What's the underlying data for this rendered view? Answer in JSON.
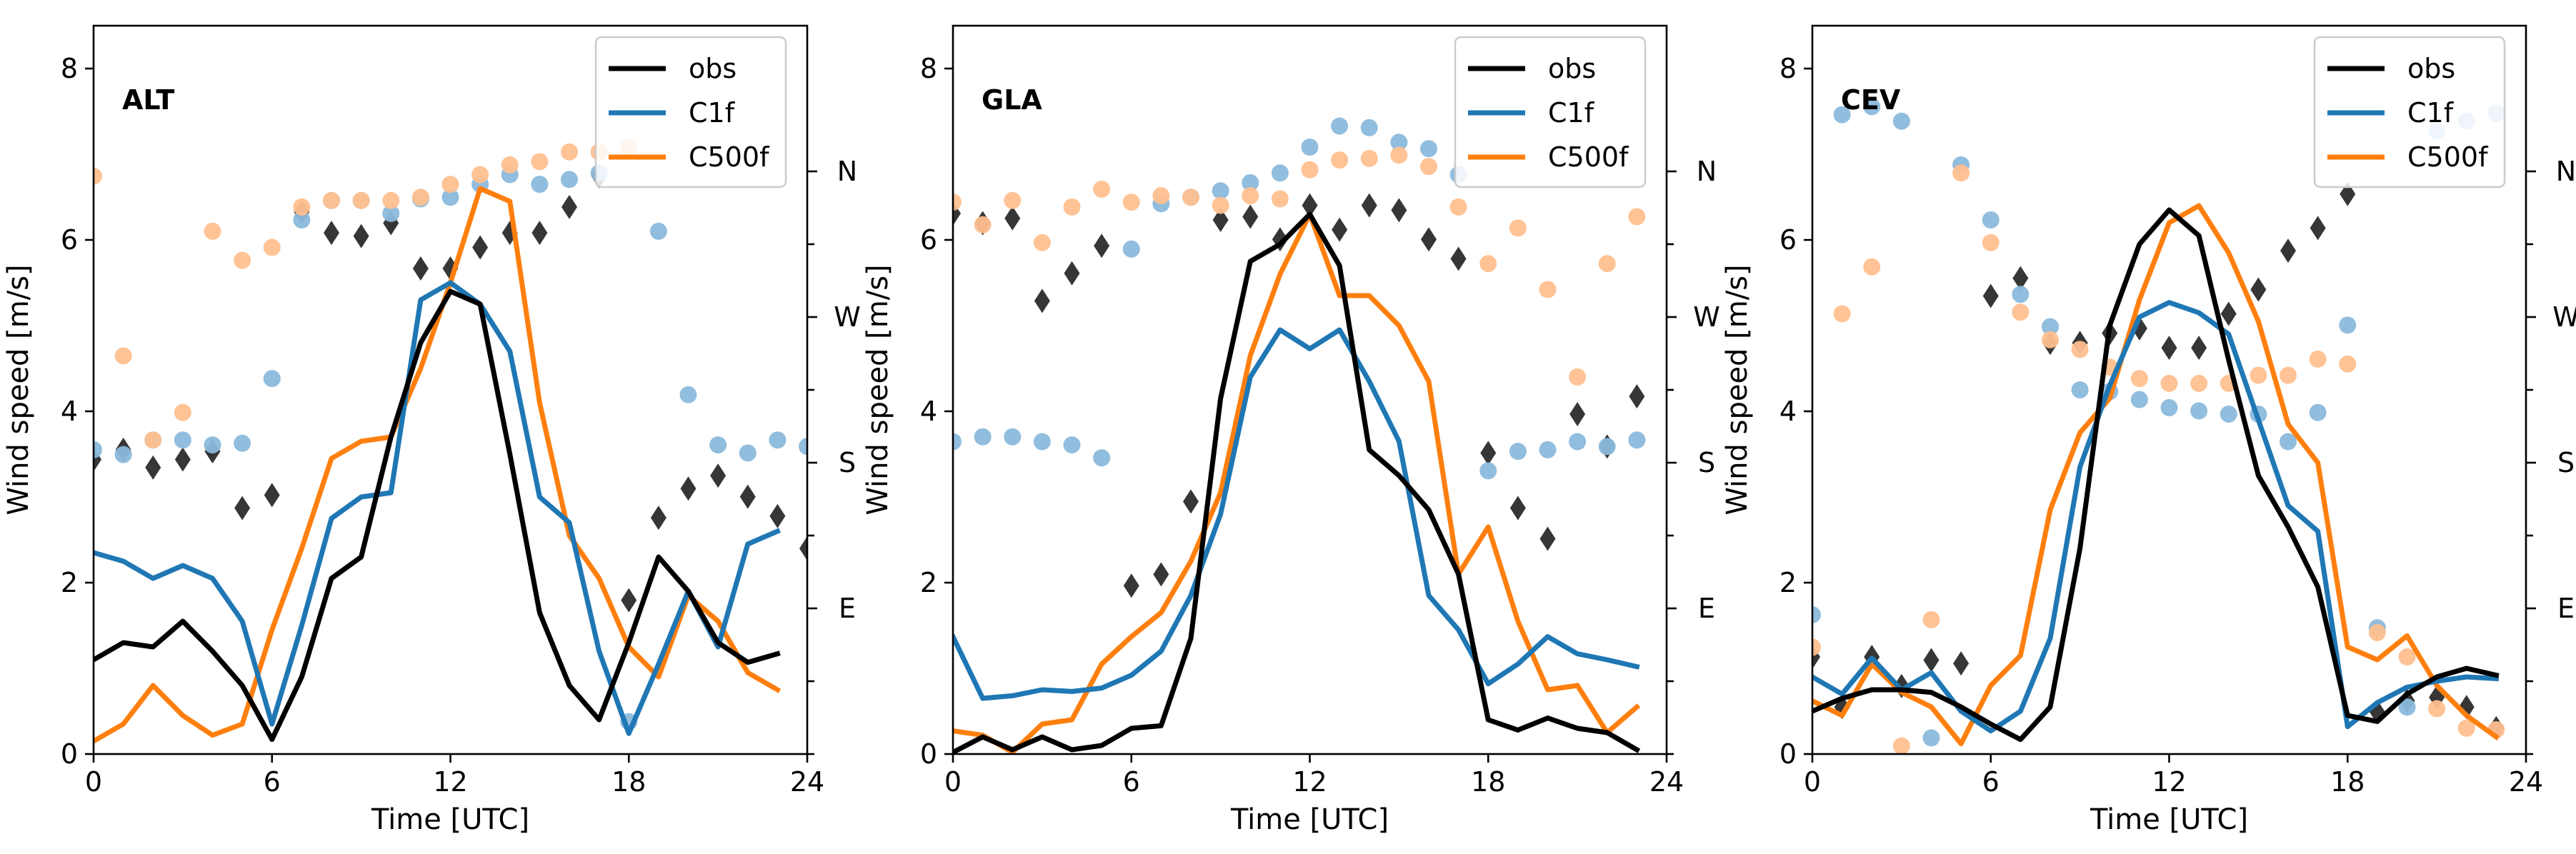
{
  "figure": {
    "xlabel": "Time [UTC]",
    "ylabel": "Wind speed [m/s]",
    "direction_labels": [
      "E",
      "S",
      "W",
      "N"
    ],
    "legend": [
      "obs",
      "C1f",
      "C500f"
    ]
  },
  "colors": {
    "obs": "#000000",
    "C1f": "#1f77b4",
    "C500f": "#ff7f0e",
    "obs_dir": "#2b2b2b",
    "C1f_dir": "#8bb9dc",
    "C500f_dir": "#ffc08f"
  },
  "chart_data": [
    {
      "type": "line",
      "title": "ALT",
      "xlabel": "Time [UTC]",
      "ylabel": "Wind speed [m/s]",
      "xlim": [
        0,
        24
      ],
      "ylim": [
        0,
        8.5
      ],
      "xticks": [
        0,
        6,
        12,
        18,
        24
      ],
      "yticks": [
        0,
        2,
        4,
        6,
        8
      ],
      "x": [
        0,
        1,
        2,
        3,
        4,
        5,
        6,
        7,
        8,
        9,
        10,
        11,
        12,
        13,
        14,
        15,
        16,
        17,
        18,
        19,
        20,
        21,
        22,
        23
      ],
      "series": [
        {
          "name": "obs",
          "values": [
            1.1,
            1.3,
            1.25,
            1.55,
            1.2,
            0.8,
            0.17,
            0.9,
            2.05,
            2.3,
            3.7,
            4.8,
            5.4,
            5.25,
            3.5,
            1.65,
            0.8,
            0.4,
            1.3,
            2.3,
            1.9,
            1.3,
            1.07,
            1.17
          ]
        },
        {
          "name": "C1f",
          "values": [
            2.35,
            2.25,
            2.05,
            2.2,
            2.05,
            1.55,
            0.35,
            1.5,
            2.75,
            3.0,
            3.05,
            5.3,
            5.5,
            5.25,
            4.7,
            3.0,
            2.7,
            1.2,
            0.24,
            1.05,
            1.9,
            1.25,
            2.45,
            2.6
          ]
        },
        {
          "name": "C500f",
          "values": [
            0.15,
            0.35,
            0.8,
            0.45,
            0.22,
            0.35,
            1.45,
            2.4,
            3.45,
            3.65,
            3.7,
            4.5,
            5.5,
            6.6,
            6.45,
            4.1,
            2.55,
            2.05,
            1.25,
            0.9,
            1.85,
            1.55,
            0.95,
            0.75
          ]
        }
      ],
      "direction_points": [
        {
          "name": "obs",
          "values": [
            182,
            188,
            177,
            182,
            187,
            152,
            160,
            335,
            322,
            320,
            328,
            300,
            300,
            313,
            322,
            322,
            338,
            357,
            95,
            146,
            164,
            172,
            159,
            147,
            127
          ]
        },
        {
          "name": "C1f",
          "values": [
            188,
            185,
            194,
            194,
            191,
            192,
            232,
            330,
            342,
            342,
            334,
            343,
            344,
            352,
            358,
            352,
            355,
            359,
            20,
            323,
            222,
            191,
            186,
            194,
            190
          ]
        },
        {
          "name": "C500f",
          "values": [
            357,
            246,
            194,
            211,
            323,
            305,
            313,
            338,
            342,
            342,
            342,
            344,
            352,
            358,
            364,
            366,
            372,
            372,
            375
          ]
        }
      ]
    },
    {
      "type": "line",
      "title": "GLA",
      "xlabel": "Time [UTC]",
      "ylabel": "Wind speed [m/s]",
      "xlim": [
        0,
        24
      ],
      "ylim": [
        0,
        8.5
      ],
      "xticks": [
        0,
        6,
        12,
        18,
        24
      ],
      "yticks": [
        0,
        2,
        4,
        6,
        8
      ],
      "x": [
        0,
        1,
        2,
        3,
        4,
        5,
        6,
        7,
        8,
        9,
        10,
        11,
        12,
        13,
        14,
        15,
        16,
        17,
        18,
        19,
        20,
        21,
        22,
        23
      ],
      "series": [
        {
          "name": "obs",
          "values": [
            0.02,
            0.2,
            0.05,
            0.2,
            0.05,
            0.1,
            0.3,
            0.33,
            1.35,
            4.15,
            5.75,
            5.95,
            6.3,
            5.7,
            3.55,
            3.25,
            2.85,
            2.1,
            0.4,
            0.28,
            0.42,
            0.3,
            0.25,
            0.05
          ]
        },
        {
          "name": "C1f",
          "values": [
            1.37,
            0.65,
            0.68,
            0.75,
            0.73,
            0.77,
            0.92,
            1.2,
            1.85,
            2.8,
            4.4,
            4.95,
            4.73,
            4.95,
            4.35,
            3.65,
            1.85,
            1.45,
            0.82,
            1.05,
            1.37,
            1.17,
            1.1,
            1.02
          ]
        },
        {
          "name": "C500f",
          "values": [
            0.27,
            0.22,
            0.02,
            0.35,
            0.4,
            1.05,
            1.37,
            1.65,
            2.25,
            3.05,
            4.65,
            5.6,
            6.3,
            5.35,
            5.35,
            5.0,
            4.35,
            2.1,
            2.65,
            1.55,
            0.75,
            0.8,
            0.25,
            0.55
          ]
        }
      ],
      "direction_points": [
        {
          "name": "obs",
          "values": [
            334,
            328,
            331,
            280,
            297,
            314,
            104,
            111,
            156,
            330,
            332,
            318,
            339,
            324,
            339,
            336,
            318,
            306,
            186,
            152,
            133,
            210,
            190,
            221
          ]
        },
        {
          "name": "C1f",
          "values": [
            193,
            196,
            196,
            193,
            191,
            183,
            312,
            340,
            344,
            348,
            353,
            359,
            375,
            388,
            387,
            378,
            374,
            358,
            175,
            187,
            188,
            193,
            190,
            194
          ]
        },
        {
          "name": "C500f",
          "values": [
            341,
            327,
            342,
            316,
            338,
            349,
            341,
            345,
            344,
            339,
            345,
            343,
            361,
            367,
            368,
            370,
            363,
            338,
            303,
            325,
            287,
            233,
            303,
            332
          ]
        }
      ]
    },
    {
      "type": "line",
      "title": "CEV",
      "xlabel": "Time [UTC]",
      "ylabel": "Wind speed [m/s]",
      "xlim": [
        0,
        24
      ],
      "ylim": [
        0,
        8.5
      ],
      "xticks": [
        0,
        6,
        12,
        18,
        24
      ],
      "yticks": [
        0,
        2,
        4,
        6,
        8
      ],
      "x": [
        0,
        1,
        2,
        3,
        4,
        5,
        6,
        7,
        8,
        9,
        10,
        11,
        12,
        13,
        14,
        15,
        16,
        17,
        18,
        19,
        20,
        21,
        22,
        23
      ],
      "series": [
        {
          "name": "obs",
          "values": [
            0.5,
            0.65,
            0.75,
            0.75,
            0.72,
            0.55,
            0.35,
            0.17,
            0.55,
            2.4,
            5.0,
            5.95,
            6.35,
            6.05,
            4.6,
            3.25,
            2.65,
            1.95,
            0.45,
            0.38,
            0.7,
            0.9,
            1.0,
            0.92
          ]
        },
        {
          "name": "C1f",
          "values": [
            0.9,
            0.7,
            1.12,
            0.75,
            0.95,
            0.5,
            0.27,
            0.5,
            1.35,
            3.35,
            4.3,
            5.1,
            5.27,
            5.15,
            4.9,
            3.9,
            2.9,
            2.6,
            0.32,
            0.6,
            0.78,
            0.85,
            0.9,
            0.88
          ]
        },
        {
          "name": "C500f",
          "values": [
            0.62,
            0.45,
            1.05,
            0.72,
            0.55,
            0.12,
            0.8,
            1.15,
            2.85,
            3.75,
            4.15,
            5.3,
            6.2,
            6.4,
            5.85,
            5.05,
            3.85,
            3.4,
            1.25,
            1.1,
            1.38,
            0.8,
            0.45,
            0.2
          ]
        }
      ],
      "direction_points": [
        {
          "name": "obs",
          "values": [
            60,
            29,
            60,
            42,
            58,
            56,
            283,
            294,
            254,
            254,
            260,
            263,
            251,
            251,
            272,
            287,
            311,
            325,
            346,
            26,
            33,
            35,
            29,
            16
          ]
        },
        {
          "name": "C1f",
          "values": [
            86,
            395,
            400,
            391,
            10,
            364,
            330,
            284,
            264,
            225,
            224,
            219,
            214,
            212,
            210,
            210,
            193,
            211,
            265,
            78,
            29,
            385,
            391,
            396
          ]
        },
        {
          "name": "C500f",
          "values": [
            66,
            272,
            301,
            5,
            83,
            359,
            316,
            273,
            256,
            250,
            239,
            232,
            229,
            229,
            229,
            234,
            234,
            244,
            241,
            75,
            60,
            28,
            16,
            15
          ]
        }
      ]
    }
  ]
}
